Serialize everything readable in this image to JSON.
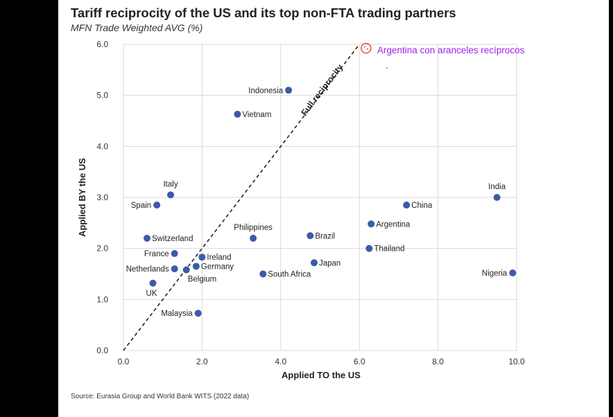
{
  "chart_data": {
    "type": "scatter",
    "title": "Tariff reciprocity of the US and its top non-FTA trading partners",
    "subtitle": "MFN Trade Weighted AVG (%)",
    "xlabel": "Applied TO the US",
    "ylabel": "Applied BY the US",
    "xlim": [
      0,
      10
    ],
    "ylim": [
      0,
      6
    ],
    "xticks": [
      "0.0",
      "2.0",
      "4.0",
      "6.0",
      "8.0",
      "10.0"
    ],
    "yticks": [
      "0.0",
      "1.0",
      "2.0",
      "3.0",
      "4.0",
      "5.0",
      "6.0"
    ],
    "grid": true,
    "reference_line": {
      "label": "Full reciprocity",
      "from": [
        0,
        0
      ],
      "to": [
        6,
        6
      ]
    },
    "points": [
      {
        "label": "Indonesia",
        "x": 4.2,
        "y": 5.1,
        "side": "left"
      },
      {
        "label": "Vietnam",
        "x": 2.9,
        "y": 4.63,
        "side": "right"
      },
      {
        "label": "Italy",
        "x": 1.2,
        "y": 3.05,
        "side": "top"
      },
      {
        "label": "Spain",
        "x": 0.85,
        "y": 2.85,
        "side": "left"
      },
      {
        "label": "Switzerland",
        "x": 0.6,
        "y": 2.2,
        "side": "right"
      },
      {
        "label": "France",
        "x": 1.3,
        "y": 1.9,
        "side": "left"
      },
      {
        "label": "Ireland",
        "x": 2.0,
        "y": 1.83,
        "side": "right"
      },
      {
        "label": "Germany",
        "x": 1.85,
        "y": 1.65,
        "side": "right"
      },
      {
        "label": "Netherlands",
        "x": 1.3,
        "y": 1.6,
        "side": "left"
      },
      {
        "label": "Belgium",
        "x": 1.6,
        "y": 1.58,
        "side": "below-right"
      },
      {
        "label": "UK",
        "x": 0.75,
        "y": 1.32,
        "side": "below"
      },
      {
        "label": "Malaysia",
        "x": 1.9,
        "y": 0.73,
        "side": "left"
      },
      {
        "label": "Philippines",
        "x": 3.3,
        "y": 2.2,
        "side": "top"
      },
      {
        "label": "South Africa",
        "x": 3.55,
        "y": 1.5,
        "side": "right"
      },
      {
        "label": "Brazil",
        "x": 4.75,
        "y": 2.25,
        "side": "right"
      },
      {
        "label": "Japan",
        "x": 4.85,
        "y": 1.72,
        "side": "right"
      },
      {
        "label": "Argentina",
        "x": 6.3,
        "y": 2.48,
        "side": "right"
      },
      {
        "label": "Thailand",
        "x": 6.25,
        "y": 2.0,
        "side": "right"
      },
      {
        "label": "China",
        "x": 7.2,
        "y": 2.85,
        "side": "right"
      },
      {
        "label": "India",
        "x": 9.5,
        "y": 3.0,
        "side": "top"
      },
      {
        "label": "Nigeria",
        "x": 9.9,
        "y": 1.52,
        "side": "left"
      }
    ],
    "annotation": {
      "text": "Argentina con aranceles recíprocos",
      "x": 6.1,
      "y": 5.95
    },
    "colors": {
      "point": "#3a5ba8",
      "grid": "#d9d9d9",
      "annotation": "#a020f0"
    }
  },
  "source": "Source: Eurasia Group and World Bank WITS (2022 data)"
}
